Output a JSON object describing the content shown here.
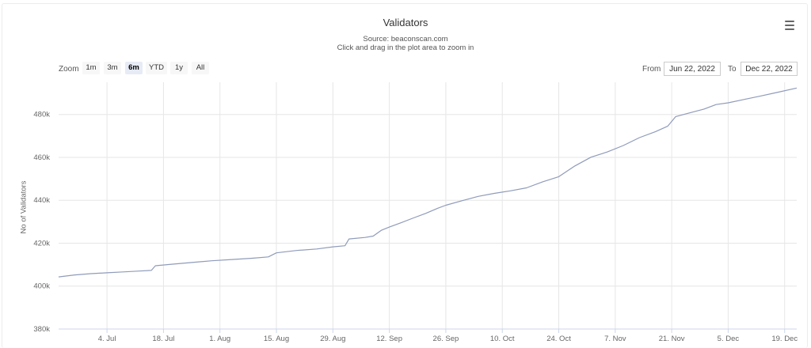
{
  "chart_data": {
    "type": "line",
    "title": "Validators",
    "subtitle_source": "Source: beaconscan.com",
    "subtitle_hint": "Click and drag in the plot area to zoom in",
    "ylabel": "No of Validators",
    "ylim": [
      380000,
      495000
    ],
    "yticks": [
      380000,
      400000,
      420000,
      440000,
      460000,
      480000
    ],
    "ytick_labels": [
      "380k",
      "400k",
      "420k",
      "440k",
      "460k",
      "480k"
    ],
    "xlim": [
      "2022-06-22",
      "2022-12-22"
    ],
    "xticks": [
      "2022-07-04",
      "2022-07-18",
      "2022-08-01",
      "2022-08-15",
      "2022-08-29",
      "2022-09-12",
      "2022-09-26",
      "2022-10-10",
      "2022-10-24",
      "2022-11-07",
      "2022-11-21",
      "2022-12-05",
      "2022-12-19"
    ],
    "xtick_labels": [
      "4. Jul",
      "18. Jul",
      "1. Aug",
      "15. Aug",
      "29. Aug",
      "12. Sep",
      "26. Sep",
      "10. Oct",
      "24. Oct",
      "7. Nov",
      "21. Nov",
      "5. Dec",
      "19. Dec"
    ],
    "grid": true,
    "legend": "none",
    "line_color": "#8f9bba",
    "series": [
      {
        "x": [
          "2022-06-22",
          "2022-06-26",
          "2022-06-30",
          "2022-07-04",
          "2022-07-08",
          "2022-07-12",
          "2022-07-15",
          "2022-07-16",
          "2022-07-20",
          "2022-07-25",
          "2022-07-30",
          "2022-08-04",
          "2022-08-09",
          "2022-08-13",
          "2022-08-15",
          "2022-08-20",
          "2022-08-25",
          "2022-08-29",
          "2022-09-01",
          "2022-09-02",
          "2022-09-06",
          "2022-09-08",
          "2022-09-10",
          "2022-09-12",
          "2022-09-15",
          "2022-09-18",
          "2022-09-21",
          "2022-09-24",
          "2022-09-26",
          "2022-09-30",
          "2022-10-04",
          "2022-10-08",
          "2022-10-12",
          "2022-10-16",
          "2022-10-20",
          "2022-10-24",
          "2022-10-28",
          "2022-11-01",
          "2022-11-05",
          "2022-11-09",
          "2022-11-13",
          "2022-11-17",
          "2022-11-20",
          "2022-11-22",
          "2022-11-25",
          "2022-11-29",
          "2022-12-02",
          "2022-12-05",
          "2022-12-09",
          "2022-12-13",
          "2022-12-17",
          "2022-12-22"
        ],
        "values": [
          404300,
          405200,
          405800,
          406200,
          406600,
          407000,
          407300,
          409500,
          410200,
          411000,
          411800,
          412400,
          413000,
          413600,
          415500,
          416600,
          417300,
          418300,
          418800,
          422000,
          422700,
          423300,
          426000,
          427500,
          429600,
          431800,
          433900,
          436300,
          437700,
          439800,
          441800,
          443200,
          444400,
          445800,
          448600,
          451000,
          456000,
          460100,
          462500,
          465500,
          469200,
          472000,
          474500,
          479000,
          480500,
          482500,
          484600,
          485400,
          487000,
          488600,
          490200,
          492300
        ]
      }
    ]
  },
  "controls": {
    "zoom_label": "Zoom",
    "zoom_buttons": [
      "1m",
      "3m",
      "6m",
      "YTD",
      "1y",
      "All"
    ],
    "active_zoom": "6m",
    "from_label": "From",
    "from_value": "Jun 22, 2022",
    "to_label": "To",
    "to_value": "Dec 22, 2022"
  },
  "menu_icon": "hamburger-menu-icon",
  "colors": {
    "line": "#8f9bba",
    "grid": "#e6e6e6",
    "axis": "#ccd6eb",
    "active_zoom_bg": "#e6ebf5"
  }
}
